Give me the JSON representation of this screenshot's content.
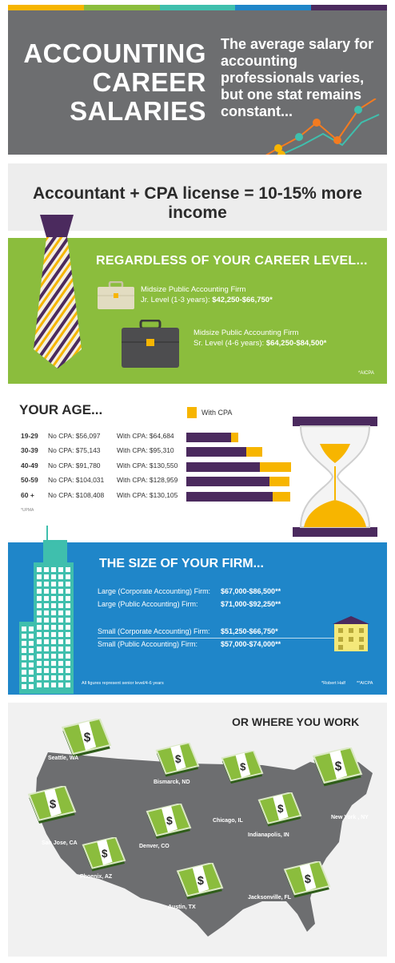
{
  "colors": {
    "stripes": [
      "#f7b500",
      "#8bbd3d",
      "#3fbfad",
      "#1f86c9",
      "#4b2a5e"
    ],
    "header_bg": "#6d6e70",
    "green": "#8bbd3d",
    "blue": "#1f86c9",
    "purple": "#4b2a5e",
    "gold": "#f7b500",
    "map": "#6d6e70"
  },
  "header": {
    "title_lines": [
      "ACCOUNTING",
      "CAREER",
      "SALARIES"
    ],
    "subtitle": "The average salary for accounting professionals varies, but one stat remains constant..."
  },
  "equation": {
    "text": "Accountant + CPA license = 10-15% more income"
  },
  "career_level": {
    "title": "REGARDLESS OF YOUR CAREER LEVEL...",
    "jr": {
      "firm": "Midsize Public Accounting Firm",
      "label": "Jr. Level (1-3 years):",
      "value": "$42,250-$66,750*"
    },
    "sr": {
      "firm": "Midsize Public Accounting Firm",
      "label": "Sr. Level (4-6 years):",
      "value": "$64,250-$84,500*"
    },
    "source": "*AICPA"
  },
  "age": {
    "title": "YOUR AGE...",
    "legend": "With CPA",
    "rows": [
      {
        "range": "19-29",
        "no_cpa": "No CPA: $56,097",
        "with_cpa": "With CPA: $64,684",
        "no_val": 56097,
        "with_val": 64684
      },
      {
        "range": "30-39",
        "no_cpa": "No CPA: $75,143",
        "with_cpa": "With CPA: $95,310",
        "no_val": 75143,
        "with_val": 95310
      },
      {
        "range": "40-49",
        "no_cpa": "No CPA: $91,780",
        "with_cpa": "With CPA: $130,550",
        "no_val": 91780,
        "with_val": 130550
      },
      {
        "range": "50-59",
        "no_cpa": "No CPA: $104,031",
        "with_cpa": "With CPA: $128,959",
        "no_val": 104031,
        "with_val": 128959
      },
      {
        "range": "60 +",
        "no_cpa": "No CPA: $108,408",
        "with_cpa": "With CPA: $130,105",
        "no_val": 108408,
        "with_val": 130105
      }
    ],
    "source": "*UPMA"
  },
  "firm_size": {
    "title": "THE SIZE OF YOUR FIRM...",
    "rows": [
      {
        "label": "Large (Corporate Accounting) Firm:",
        "value": "$67,000-$86,500**"
      },
      {
        "label": "Large (Public Accounting) Firm:",
        "value": "$71,000-$92,250**"
      },
      {
        "label": "Small (Corporate Accounting) Firm:",
        "value": "$51,250-$66,750*"
      },
      {
        "label": "Small (Public Accounting) Firm:",
        "value": "$57,000-$74,000**"
      }
    ],
    "footnote": "All figures represent senior level/4-6 years",
    "source1": "*Robert Half",
    "source2": "**AICPA"
  },
  "location": {
    "title": "OR WHERE YOU WORK",
    "cities": [
      "Seattle, WA",
      "Bismarck, ND",
      "New York , NY",
      "San Jose, CA",
      "Chicago, IL",
      "Indianapolis, IN",
      "Denver, CO",
      "Phoenix, AZ",
      "Austin, TX",
      "Jacksonville, FL"
    ]
  }
}
